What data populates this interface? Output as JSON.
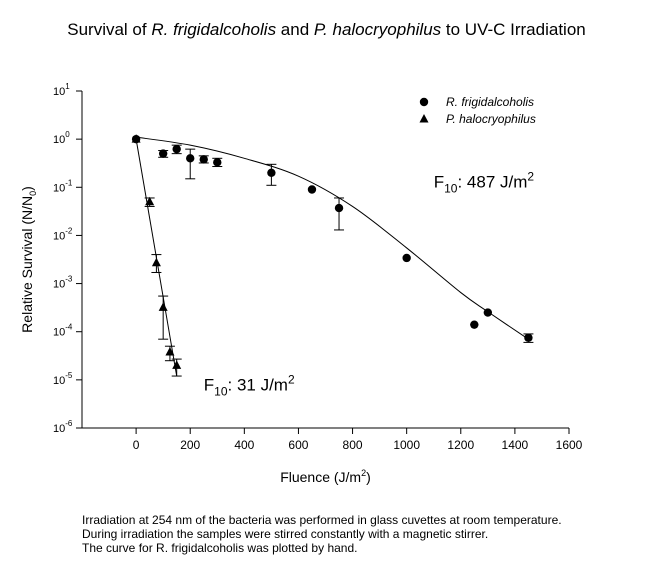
{
  "title": {
    "prefix": "Survival of ",
    "species1": "R. frigidalcoholis",
    "middle": " and ",
    "species2": "P. halocryophilus",
    "suffix": " to UV-C Irradiation"
  },
  "caption": [
    "Irradiation at 254 nm of the bacteria was performed in glass cuvettes at room temperature.",
    "During irradiation the samples were stirred constantly with a magnetic stirrer.",
    "The curve for R. frigidalcoholis was plotted by hand."
  ],
  "chart_data": {
    "type": "scatter",
    "xlabel": "Fluence (J/m2)",
    "ylabel": "Relative Survival (N/N0)",
    "xlim": [
      -200,
      1600
    ],
    "ylim": [
      1e-06,
      10
    ],
    "yscale": "log",
    "x_ticks": [
      0,
      200,
      400,
      600,
      800,
      1000,
      1200,
      1400,
      1600
    ],
    "y_ticks": [
      {
        "value": 1e-06,
        "exp": "-6"
      },
      {
        "value": 1e-05,
        "exp": "-5"
      },
      {
        "value": 0.0001,
        "exp": "-4"
      },
      {
        "value": 0.001,
        "exp": "-3"
      },
      {
        "value": 0.01,
        "exp": "-2"
      },
      {
        "value": 0.1,
        "exp": "-1"
      },
      {
        "value": 1,
        "exp": "0"
      },
      {
        "value": 10,
        "exp": "1"
      }
    ],
    "legend_position": "top-right",
    "series": [
      {
        "name": "R. frigidalcoholis",
        "marker": "circle",
        "points": [
          {
            "x": 0,
            "y": 1.0
          },
          {
            "x": 100,
            "y": 0.5,
            "lo": 0.42,
            "hi": 0.58
          },
          {
            "x": 150,
            "y": 0.62,
            "lo": 0.5,
            "hi": 0.75
          },
          {
            "x": 200,
            "y": 0.4,
            "lo": 0.15,
            "hi": 0.62
          },
          {
            "x": 250,
            "y": 0.38,
            "lo": 0.32,
            "hi": 0.45
          },
          {
            "x": 300,
            "y": 0.33,
            "lo": 0.27,
            "hi": 0.4
          },
          {
            "x": 500,
            "y": 0.2,
            "lo": 0.11,
            "hi": 0.3
          },
          {
            "x": 650,
            "y": 0.09
          },
          {
            "x": 750,
            "y": 0.037,
            "lo": 0.013,
            "hi": 0.06
          },
          {
            "x": 1000,
            "y": 0.0034
          },
          {
            "x": 1250,
            "y": 0.00014
          },
          {
            "x": 1300,
            "y": 0.00025
          },
          {
            "x": 1450,
            "y": 7.5e-05,
            "lo": 6e-05,
            "hi": 9e-05
          }
        ],
        "curve": [
          [
            0,
            1.1
          ],
          [
            200,
            0.75
          ],
          [
            400,
            0.4
          ],
          [
            600,
            0.17
          ],
          [
            800,
            0.04
          ],
          [
            1000,
            0.0055
          ],
          [
            1200,
            0.00065
          ],
          [
            1300,
            0.00026
          ],
          [
            1450,
            7e-05
          ]
        ]
      },
      {
        "name": "P. halocryophilus",
        "marker": "triangle",
        "points": [
          {
            "x": 0,
            "y": 1.0
          },
          {
            "x": 50,
            "y": 0.05,
            "lo": 0.04,
            "hi": 0.06
          },
          {
            "x": 75,
            "y": 0.0027,
            "lo": 0.0017,
            "hi": 0.004
          },
          {
            "x": 100,
            "y": 0.00032,
            "lo": 7e-05,
            "hi": 0.00055
          },
          {
            "x": 125,
            "y": 3.8e-05,
            "lo": 2.5e-05,
            "hi": 5e-05
          },
          {
            "x": 150,
            "y": 2e-05,
            "lo": 1.2e-05,
            "hi": 2.7e-05
          }
        ],
        "curve": [
          [
            0,
            1.0
          ],
          [
            150,
            1.2e-05
          ]
        ]
      }
    ],
    "annotations": [
      {
        "id": "rf",
        "base": "F",
        "sub": "10",
        "text": ": 487 J/m",
        "sup": "2",
        "x": 1100,
        "y": 0.1
      },
      {
        "id": "ph",
        "base": "F",
        "sub": "10",
        "text": ": 31 J/m",
        "sup": "2",
        "x": 250,
        "y": 6e-06
      }
    ]
  }
}
